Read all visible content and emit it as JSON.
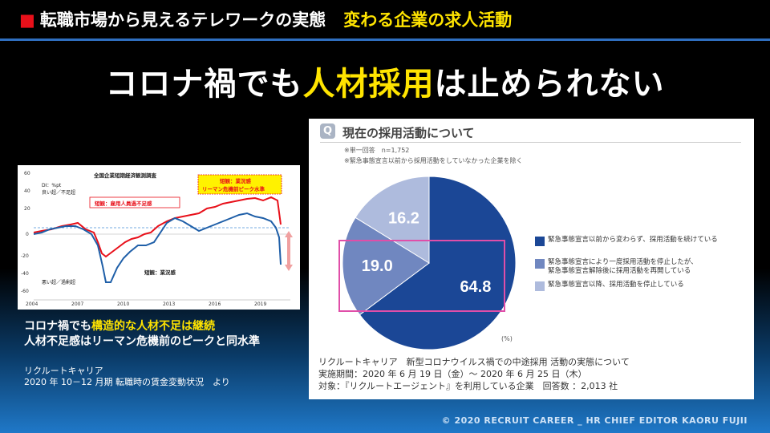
{
  "header": {
    "bullet": "■",
    "title": "転職市場から見えるテレワークの実態",
    "subtitle": "変わる企業の求人活動"
  },
  "headline": {
    "part1": "コロナ禍でも",
    "highlight": "人材採用",
    "part2": "は止められない"
  },
  "left_chart": {
    "title": "全国企業短期経済観測調査",
    "y_axis_label": "DI：%pt",
    "shortage_label": "良い超／不足超",
    "excess_label": "悪い超／過剰超",
    "employment_label": "短観：雇用人員過不足感",
    "business_label": "短観：業況感",
    "callout_line1": "短観：業況感",
    "callout_line2": "リーマン危機前ピーク水準",
    "y_ticks": [
      "60",
      "40",
      "20",
      "0",
      "-20",
      "-40",
      "-60"
    ],
    "x_ticks": [
      "2004",
      "2007",
      "2010",
      "2013",
      "2016",
      "2019"
    ],
    "colors": {
      "employment": "#e8101a",
      "business": "#1f5fa8"
    }
  },
  "caption": {
    "line1_prefix": "コロナ禍でも",
    "line1_highlight": "構造的な人材不足は継続",
    "line2": "人材不足感はリーマン危機前のピークと同水準"
  },
  "source_left": {
    "line1": "リクルートキャリア",
    "line2": "2020 年 10－12 月期 転職時の賃金変動状況　より"
  },
  "survey": {
    "badge": "Q",
    "title": "現在の採用活動について",
    "note1": "※単一回答　n=1,752",
    "note2": "※緊急事態宣言以前から採用活動をしていなかった企業を除く",
    "unit": "(%)"
  },
  "chart_data": {
    "type": "pie",
    "labels": [
      "緊急事態宣言以前から変わらず、採用活動を続けている",
      "緊急事態宣言により一度採用活動を停止したが、緊急事態宣言解除後に採用活動を再開している",
      "緊急事態宣言以降、採用活動を停止している"
    ],
    "values": [
      64.8,
      19.0,
      16.2
    ],
    "value_labels": [
      "64.8",
      "19.0",
      "16.2"
    ],
    "colors": [
      "#1b4796",
      "#7087c0",
      "#aebbdd"
    ],
    "legend": [
      {
        "line1": "緊急事態宣言以前から変わらず、採用活動を続けている",
        "line2": ""
      },
      {
        "line1": "緊急事態宣言により一度採用活動を停止したが、",
        "line2": "緊急事態宣言解除後に採用活動を再開している"
      },
      {
        "line1": "緊急事態宣言以降、採用活動を停止している",
        "line2": ""
      }
    ],
    "highlight_color": "#e04ea8"
  },
  "source_right": {
    "line1": "リクルートキャリア　新型コロナウイルス禍での中途採用 活動の実態について",
    "line2": "実施期間：2020 年 6 月 19 日（金）～ 2020 年 6 月 25 日（木）",
    "line3": "対象：『リクルートエージェント』を利用している企業　回答数 ：2,013 社"
  },
  "footer": "© 2020 RECRUIT CAREER _ HR CHIEF EDITOR KAORU FUJII"
}
